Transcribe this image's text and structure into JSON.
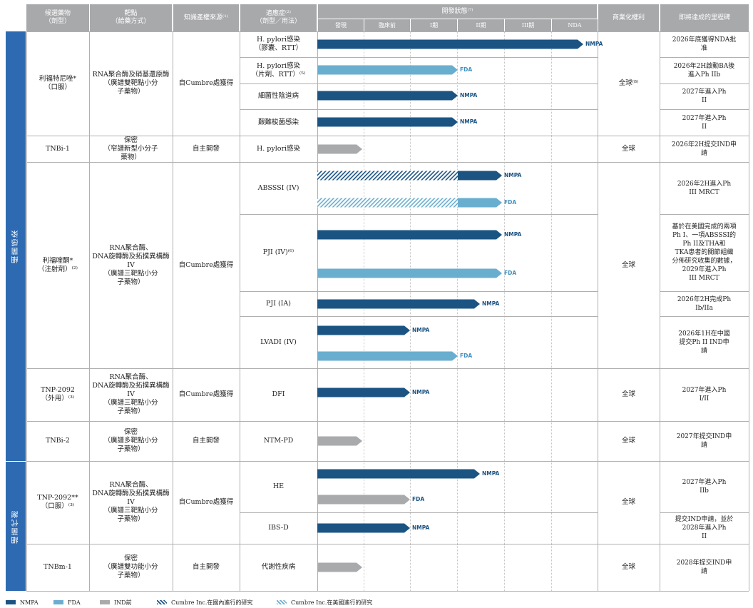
{
  "colors": {
    "nmpa": "#1b5483",
    "fda": "#6aaecf",
    "ind": "#a9aaac",
    "header": "#a8a9ab",
    "side": "#2e6ab1"
  },
  "headers": {
    "candidate": [
      "候選藥物",
      "（劑型）"
    ],
    "target": [
      "靶點",
      "（給藥方式）"
    ],
    "ip": "知識產權來源⁽¹⁾",
    "indication": [
      "適應症⁽²⁾",
      "（劑型／用法）"
    ],
    "status": "開發狀態⁽⁷⁾",
    "stages": [
      "發現",
      "臨床前",
      "I期",
      "II期",
      "III期",
      "NDA"
    ],
    "rights": "商業化權利",
    "milestone": "即將達成的里程碑"
  },
  "sections": {
    "infection": "細菌感染",
    "metabolism": "細菌代謝"
  },
  "groups": [
    {
      "candidate": "利福特尼唑*（口服）",
      "target": "RNA聚合酶及硝基還原酶（廣譜雙靶點小分子藥物）",
      "ip": "自Cumbre處獲得",
      "rights": "全球⁽⁸⁾"
    },
    {
      "candidate": "TNBi-1",
      "target": "保密（窄譜新型小分子藥物）",
      "ip": "自主開發",
      "rights": "全球"
    },
    {
      "candidate": "利福喹酮*（注射劑）⁽²⁾",
      "target": "RNA聚合酶、DNA旋轉酶及拓撲異構酶IV（廣譜三靶點小分子藥物）",
      "ip": "自Cumbre處獲得",
      "rights": "全球"
    },
    {
      "candidate": "TNP-2092（外用）⁽³⁾",
      "target": "RNA聚合酶、DNA旋轉酶及拓撲異構酶IV（廣譜三靶點小分子藥物）",
      "ip": "自Cumbre處獲得",
      "rights": "全球"
    },
    {
      "candidate": "TNBi-2",
      "target": "保密（廣譜多靶點小分子藥物）",
      "ip": "自主開發",
      "rights": "全球"
    },
    {
      "candidate": "TNP-2092**（口服）⁽³⁾",
      "target": "RNA聚合酶、DNA旋轉酶及拓撲異構酶IV（廣譜三靶點小分子藥物）",
      "ip": "自Cumbre處獲得",
      "rights": "全球"
    },
    {
      "candidate": "TNBm-1",
      "target": "保密（廣譜雙功能小分子藥物）",
      "ip": "自主開發",
      "rights": "全球"
    }
  ],
  "indications": [
    [
      "H. pylori感染",
      "（膠囊、RTT）"
    ],
    [
      "H. pylori感染",
      "（片劑、RTT）⁽⁵⁾"
    ],
    [
      "細菌性陰道病"
    ],
    [
      "艱難梭菌感染"
    ],
    [
      "H. pylori感染"
    ],
    [
      "ABSSSI (IV)"
    ],
    [
      "PJI (IV)⁽⁶⁾"
    ],
    [
      "PJI (IA)"
    ],
    [
      "LVADI (IV)"
    ],
    [
      "DFI"
    ],
    [
      "NTM-PD"
    ],
    [
      "HE"
    ],
    [
      "IBS-D"
    ],
    [
      "代謝性疾病"
    ]
  ],
  "bars": [
    {
      "type": "NMPA",
      "label": "NMPA",
      "progress": 0.95
    },
    {
      "type": "FDA",
      "label": "FDA",
      "progress": 0.5
    },
    {
      "type": "NMPA",
      "label": "NMPA",
      "progress": 0.5
    },
    {
      "type": "NMPA",
      "label": "NMPA",
      "progress": 0.5
    },
    {
      "type": "IND",
      "label": "",
      "progress": 0.16
    },
    {
      "type": "NMPA",
      "label": "NMPA",
      "progress": 0.66,
      "hatch_until": 0.5
    },
    {
      "type": "FDA",
      "label": "FDA",
      "progress": 0.66,
      "hatch_until": 0.5
    },
    {
      "type": "NMPA",
      "label": "NMPA",
      "progress": 0.66
    },
    {
      "type": "FDA",
      "label": "FDA",
      "progress": 0.66
    },
    {
      "type": "NMPA",
      "label": "NMPA",
      "progress": 0.58
    },
    {
      "type": "NMPA",
      "label": "NMPA",
      "progress": 0.33
    },
    {
      "type": "FDA",
      "label": "FDA",
      "progress": 0.5
    },
    {
      "type": "NMPA",
      "label": "NMPA",
      "progress": 0.33
    },
    {
      "type": "IND",
      "label": "",
      "progress": 0.16
    },
    {
      "type": "NMPA",
      "label": "NMPA",
      "progress": 0.58
    },
    {
      "type": "IND",
      "label": "FDA",
      "progress": 0.33
    },
    {
      "type": "NMPA",
      "label": "NMPA",
      "progress": 0.33
    },
    {
      "type": "IND",
      "label": "",
      "progress": 0.16
    }
  ],
  "milestones": [
    "2026年底獲得NDA批准",
    "2026年2H啟動BA後進入Ph IIb",
    "2027年進入Ph II",
    "2027年進入Ph II",
    "2026年2H提交IND申請",
    "2026年2H進入Ph III MRCT",
    "基於在美國完成的兩項Ph I、一項ABSSSI的Ph II及THA和TKA患者的關節組織分佈研究收集的數據，2029年進入Ph III MRCT",
    "2026年2H完成Ph Ib/IIa",
    "2026年1H在中國提交Ph II IND申請",
    "2027年進入Ph I/II",
    "2027年提交IND申請",
    "2027年進入Ph IIb",
    "提交IND申請，並於2028年進入Ph II",
    "2028年提交IND申請"
  ],
  "legend": {
    "nmpa": "NMPA",
    "fda": "FDA",
    "ind": "IND前",
    "cn_study": "Cumbre Inc.在國內進行的研究",
    "us_study": "Cumbre Inc.在美國進行的研究"
  }
}
